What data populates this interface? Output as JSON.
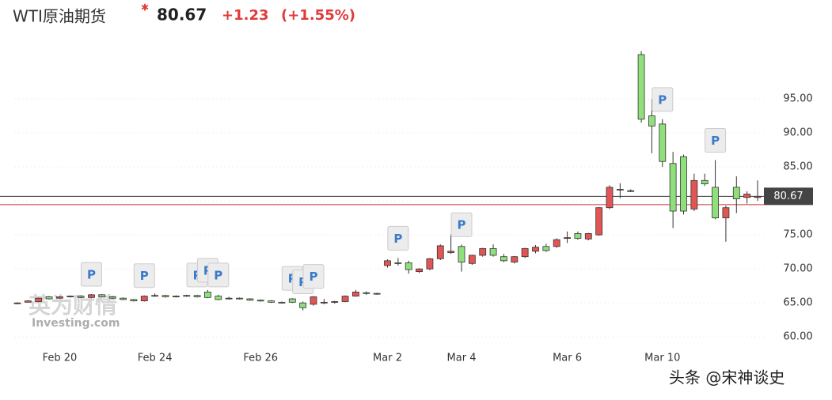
{
  "chart_data": {
    "type": "candlestick",
    "title": "WTI原油期货",
    "price": "80.67",
    "change": "+1.23",
    "change_pct": "(+1.55%)",
    "logo": "英为财情",
    "logo_sub": "Investing.com",
    "watermark": "头条 @宋神谈史",
    "categories": [
      null,
      null,
      null,
      null,
      "Feb 20",
      null,
      null,
      null,
      null,
      null,
      null,
      null,
      null,
      "Feb 24",
      null,
      null,
      null,
      null,
      null,
      null,
      null,
      null,
      null,
      "Feb 26",
      null,
      null,
      null,
      null,
      null,
      null,
      null,
      null,
      null,
      null,
      null,
      "Mar 2",
      null,
      null,
      null,
      null,
      null,
      null,
      "Mar 4",
      null,
      null,
      null,
      null,
      null,
      null,
      null,
      null,
      null,
      "Mar 6",
      null,
      null,
      null,
      null,
      null,
      null,
      null,
      null,
      "Mar 10",
      null,
      null,
      null,
      null,
      null,
      null,
      null,
      null,
      null
    ],
    "open": [
      64.9,
      65.1,
      65.2,
      65.9,
      65.7,
      65.9,
      66.0,
      65.8,
      66.2,
      65.9,
      65.7,
      65.5,
      65.3,
      66.0,
      66.1,
      65.9,
      66.0,
      66.1,
      66.6,
      66.0,
      65.6,
      65.7,
      65.6,
      65.4,
      65.3,
      65.1,
      65.6,
      65.0,
      64.8,
      65.0,
      65.1,
      65.2,
      66.0,
      66.5,
      66.4,
      70.5,
      70.9,
      70.9,
      69.6,
      70.0,
      71.5,
      72.4,
      73.3,
      70.8,
      72.0,
      73.0,
      71.8,
      71.0,
      71.8,
      72.6,
      73.3,
      73.3,
      74.5,
      75.2,
      74.4,
      75.0,
      79.0,
      81.6,
      81.5,
      101.5,
      92.5,
      91.3,
      85.5,
      86.5,
      78.8,
      83.0,
      82.0,
      77.5,
      82.0,
      80.5,
      80.5
    ],
    "high": [
      65.1,
      65.4,
      65.8,
      66.0,
      66.0,
      66.1,
      66.1,
      66.3,
      66.3,
      66.0,
      65.8,
      65.6,
      66.1,
      66.4,
      66.2,
      66.1,
      66.2,
      66.2,
      66.9,
      66.2,
      65.9,
      65.8,
      65.7,
      65.5,
      65.4,
      65.2,
      65.7,
      65.2,
      66.0,
      65.6,
      65.3,
      66.1,
      66.9,
      66.7,
      66.5,
      71.4,
      71.6,
      71.2,
      70.1,
      71.6,
      73.6,
      75.1,
      73.6,
      72.1,
      73.1,
      73.6,
      72.2,
      71.9,
      73.1,
      73.5,
      73.7,
      74.5,
      75.5,
      75.5,
      75.3,
      79.1,
      82.3,
      82.6,
      81.7,
      102.0,
      95.0,
      92.0,
      87.2,
      86.8,
      84.0,
      84.0,
      86.0,
      79.3,
      83.6,
      81.4,
      83.0
    ],
    "low": [
      64.8,
      65.1,
      65.1,
      65.5,
      65.6,
      65.8,
      65.7,
      65.7,
      65.8,
      65.6,
      65.4,
      65.2,
      65.2,
      65.9,
      65.8,
      65.8,
      65.9,
      65.8,
      65.7,
      65.4,
      65.5,
      65.5,
      65.3,
      65.2,
      65.0,
      64.9,
      65.0,
      63.9,
      64.6,
      64.8,
      64.9,
      65.1,
      65.9,
      66.2,
      66.2,
      70.2,
      70.5,
      69.3,
      69.4,
      69.8,
      71.3,
      72.2,
      69.6,
      70.6,
      71.8,
      71.8,
      71.0,
      70.8,
      71.6,
      72.3,
      72.5,
      73.1,
      73.8,
      74.3,
      74.2,
      74.9,
      78.8,
      80.4,
      81.3,
      91.5,
      87.0,
      85.0,
      76.0,
      78.0,
      78.5,
      82.2,
      77.3,
      74.0,
      78.2,
      79.6,
      80.0
    ],
    "close": [
      65.0,
      65.3,
      65.7,
      65.6,
      65.9,
      66.0,
      65.8,
      66.2,
      65.9,
      65.7,
      65.5,
      65.3,
      66.0,
      66.1,
      65.9,
      66.0,
      66.1,
      65.9,
      65.8,
      65.5,
      65.7,
      65.6,
      65.4,
      65.3,
      65.1,
      65.0,
      65.1,
      64.3,
      65.9,
      65.1,
      65.2,
      66.0,
      66.6,
      66.4,
      66.3,
      71.2,
      70.8,
      69.9,
      70.0,
      71.5,
      73.4,
      72.6,
      71.0,
      72.0,
      73.0,
      72.0,
      71.2,
      71.8,
      73.0,
      73.2,
      72.7,
      74.3,
      74.6,
      74.5,
      75.2,
      79.0,
      82.0,
      81.7,
      81.5,
      92.0,
      91.0,
      85.8,
      78.5,
      78.5,
      83.0,
      82.5,
      77.5,
      79.0,
      80.3,
      81.0,
      80.67
    ],
    "up_color": "#e25555",
    "down_color": "#8fe07c",
    "ylim": [
      58.4,
      104.3
    ],
    "yticks": [
      {
        "value": 60,
        "label": "60.00"
      },
      {
        "value": 65,
        "label": "65.00"
      },
      {
        "value": 70,
        "label": "70.00"
      },
      {
        "value": 75,
        "label": "75.00"
      },
      {
        "value": 80,
        "label": "80.00"
      },
      {
        "value": 85,
        "label": "85.00"
      },
      {
        "value": 90,
        "label": "90.00"
      },
      {
        "value": 95,
        "label": "95.00"
      }
    ],
    "grid": true,
    "reference_lines": [
      {
        "value": 80.67,
        "label": "80.67",
        "color": "#333333"
      },
      {
        "value": 79.44,
        "color": "#cc3333"
      }
    ],
    "markers": [
      {
        "label": "P",
        "candle": 7
      },
      {
        "label": "P",
        "candle": 12
      },
      {
        "label": "P",
        "candle": 17
      },
      {
        "label": "P",
        "candle": 18
      },
      {
        "label": "P",
        "candle": 19
      },
      {
        "label": "P",
        "candle": 26
      },
      {
        "label": "P",
        "candle": 27
      },
      {
        "label": "P",
        "candle": 28
      },
      {
        "label": "P",
        "candle": 36
      },
      {
        "label": "P",
        "candle": 42
      },
      {
        "label": "P",
        "candle": 61
      },
      {
        "label": "P",
        "candle": 66
      }
    ]
  }
}
